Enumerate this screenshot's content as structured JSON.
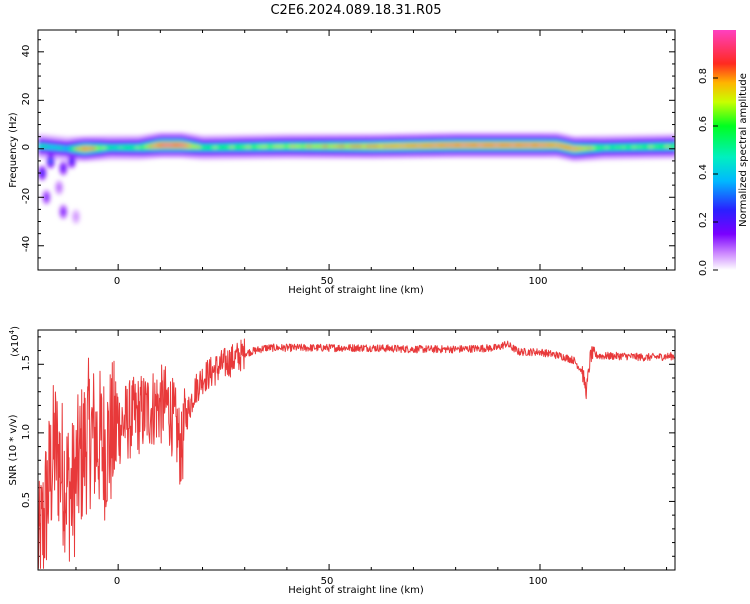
{
  "figure_title": "C2E6.2024.089.18.31.R05",
  "chart_data": [
    {
      "type": "heatmap",
      "title": "C2E6.2024.089.18.31.R05",
      "xlabel": "Height of straight line (km)",
      "ylabel": "Frequency (Hz)",
      "xlim": [
        -19,
        132
      ],
      "ylim": [
        -50,
        49
      ],
      "x_ticks": [
        0,
        50,
        100
      ],
      "y_ticks": [
        -40,
        -20,
        0,
        20,
        40
      ],
      "colorbar": {
        "label": "Normalized spectral amplitude",
        "range": [
          0,
          1
        ],
        "ticks": [
          0.0,
          0.2,
          0.4,
          0.6,
          0.8
        ]
      },
      "ridge": {
        "description_points": [
          {
            "x": -18,
            "freq": 1,
            "amp": 0.5
          },
          {
            "x": -12,
            "freq": 0,
            "amp": 0.45
          },
          {
            "x": -8,
            "freq": 0,
            "amp": 0.95
          },
          {
            "x": -2,
            "freq": 0.5,
            "amp": 0.55
          },
          {
            "x": 5,
            "freq": 0.5,
            "amp": 0.6
          },
          {
            "x": 10,
            "freq": 1.5,
            "amp": 1.0
          },
          {
            "x": 15,
            "freq": 1.5,
            "amp": 1.0
          },
          {
            "x": 20,
            "freq": 0.5,
            "amp": 0.6
          },
          {
            "x": 40,
            "freq": 1,
            "amp": 0.7
          },
          {
            "x": 60,
            "freq": 1,
            "amp": 0.85
          },
          {
            "x": 80,
            "freq": 1.5,
            "amp": 0.95
          },
          {
            "x": 100,
            "freq": 1.5,
            "amp": 0.95
          },
          {
            "x": 104,
            "freq": 1.5,
            "amp": 0.9
          },
          {
            "x": 108,
            "freq": 0,
            "amp": 0.9
          },
          {
            "x": 115,
            "freq": 0.5,
            "amp": 0.6
          },
          {
            "x": 132,
            "freq": 1,
            "amp": 0.65
          }
        ]
      },
      "scatter_blobs": [
        {
          "x": -18,
          "freq": -10,
          "amp": 0.25
        },
        {
          "x": -17,
          "freq": -20,
          "amp": 0.15
        },
        {
          "x": -16,
          "freq": -5,
          "amp": 0.3
        },
        {
          "x": -13,
          "freq": -8,
          "amp": 0.2
        },
        {
          "x": -13,
          "freq": -26,
          "amp": 0.15
        },
        {
          "x": -11,
          "freq": -5,
          "amp": 0.25
        },
        {
          "x": -10,
          "freq": -28,
          "amp": 0.05
        },
        {
          "x": -14,
          "freq": -16,
          "amp": 0.08
        }
      ]
    },
    {
      "type": "line",
      "xlabel": "Height of straight line (km)",
      "ylabel": "SNR (10 * v/v)",
      "y_multiplier_label": "(x10",
      "y_multiplier_exp": "4",
      "y_multiplier_close": ")",
      "xlim": [
        -19,
        132
      ],
      "ylim": [
        0,
        17500
      ],
      "x_ticks": [
        0,
        50,
        100
      ],
      "y_ticks": [
        5000,
        10000,
        15000
      ],
      "y_tick_labels": [
        "0.5",
        "1.0",
        "1.5"
      ],
      "color": "#e8393a",
      "series": [
        {
          "x": [
            -19,
            -17,
            -15,
            -13,
            -11,
            -9,
            -7,
            -5,
            -3,
            0,
            3,
            6,
            9,
            12,
            14,
            15,
            16,
            18,
            20,
            25,
            30,
            35,
            40,
            50,
            60,
            70,
            80,
            90,
            92,
            95,
            100,
            105,
            108,
            110,
            111,
            112,
            115,
            120,
            125,
            132
          ],
          "y": [
            300,
            5000,
            9000,
            7000,
            5500,
            8000,
            10000,
            9500,
            9000,
            10500,
            11000,
            11500,
            12000,
            12000,
            10000,
            8500,
            11000,
            13000,
            14000,
            15000,
            15800,
            16200,
            16200,
            16200,
            16200,
            16100,
            16100,
            16200,
            16500,
            15900,
            15900,
            15600,
            15300,
            14500,
            13000,
            15700,
            15600,
            15600,
            15500,
            15600
          ]
        }
      ]
    }
  ],
  "tick_labels": {
    "top_x": [
      "0",
      "50",
      "100"
    ],
    "top_y": [
      "-40",
      "-20",
      "0",
      "20",
      "40"
    ],
    "cbar": [
      "0.0",
      "0.2",
      "0.4",
      "0.6",
      "0.8"
    ],
    "bottom_x": [
      "0",
      "50",
      "100"
    ],
    "bottom_y": [
      "0.5",
      "1.0",
      "1.5"
    ]
  }
}
